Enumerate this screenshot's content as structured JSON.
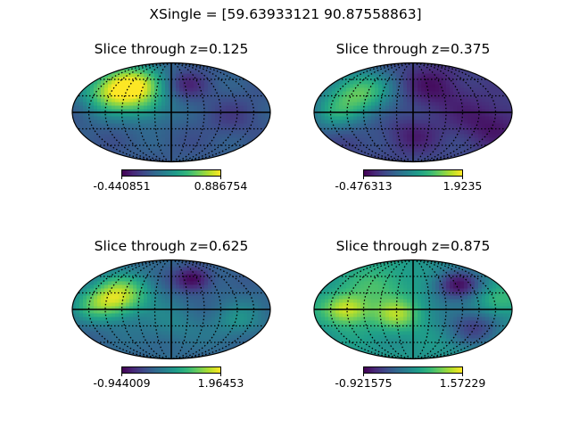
{
  "figure": {
    "suptitle": "XSingle = [59.63933121 90.87558863]"
  },
  "chart_data": [
    {
      "type": "heatmap",
      "projection": "mollweide",
      "title": "Slice through z=0.125",
      "colormap": "viridis",
      "colorbar": {
        "min": "-0.440851",
        "max": "0.886754"
      },
      "graticule": "dotted",
      "blobs": [
        {
          "lon": -75,
          "lat": 48,
          "value": 1.0,
          "spread": 28
        },
        {
          "lon": -120,
          "lat": 30,
          "value": 0.55,
          "spread": 25
        },
        {
          "lon": -40,
          "lat": 5,
          "value": 0.45,
          "spread": 22
        },
        {
          "lon": 25,
          "lat": 50,
          "value": 0.1,
          "spread": 18
        },
        {
          "lon": 110,
          "lat": -10,
          "value": 0.2,
          "spread": 25
        }
      ],
      "base": 0.28
    },
    {
      "type": "heatmap",
      "projection": "mollweide",
      "title": "Slice through z=0.375",
      "colormap": "viridis",
      "colorbar": {
        "min": "-0.476313",
        "max": "1.9235"
      },
      "graticule": "dotted",
      "blobs": [
        {
          "lon": -100,
          "lat": 35,
          "value": 0.75,
          "spread": 30
        },
        {
          "lon": -150,
          "lat": -5,
          "value": 0.45,
          "spread": 22
        },
        {
          "lon": 40,
          "lat": 45,
          "value": 0.05,
          "spread": 30
        },
        {
          "lon": 140,
          "lat": -20,
          "value": 0.05,
          "spread": 30
        },
        {
          "lon": 0,
          "lat": -40,
          "value": 0.1,
          "spread": 22
        }
      ],
      "base": 0.22
    },
    {
      "type": "heatmap",
      "projection": "mollweide",
      "title": "Slice through z=0.625",
      "colormap": "viridis",
      "colorbar": {
        "min": "-0.944009",
        "max": "1.96453"
      },
      "graticule": "dotted",
      "blobs": [
        {
          "lon": -95,
          "lat": 25,
          "value": 0.9,
          "spread": 26
        },
        {
          "lon": -140,
          "lat": 5,
          "value": 0.55,
          "spread": 22
        },
        {
          "lon": 40,
          "lat": 55,
          "value": 0.0,
          "spread": 16
        },
        {
          "lon": 120,
          "lat": -20,
          "value": 0.5,
          "spread": 22
        },
        {
          "lon": 0,
          "lat": -30,
          "value": 0.45,
          "spread": 25
        }
      ],
      "base": 0.32
    },
    {
      "type": "heatmap",
      "projection": "mollweide",
      "title": "Slice through z=0.875",
      "colormap": "viridis",
      "colorbar": {
        "min": "-0.921575",
        "max": "1.57229"
      },
      "graticule": "dotted",
      "blobs": [
        {
          "lon": -120,
          "lat": 0,
          "value": 0.95,
          "spread": 20
        },
        {
          "lon": -30,
          "lat": -10,
          "value": 0.85,
          "spread": 20
        },
        {
          "lon": -60,
          "lat": 45,
          "value": 0.7,
          "spread": 25
        },
        {
          "lon": 80,
          "lat": 45,
          "value": 0.05,
          "spread": 20
        },
        {
          "lon": 110,
          "lat": -30,
          "value": 0.2,
          "spread": 25
        },
        {
          "lon": 160,
          "lat": 15,
          "value": 0.7,
          "spread": 20
        }
      ],
      "base": 0.52
    }
  ]
}
